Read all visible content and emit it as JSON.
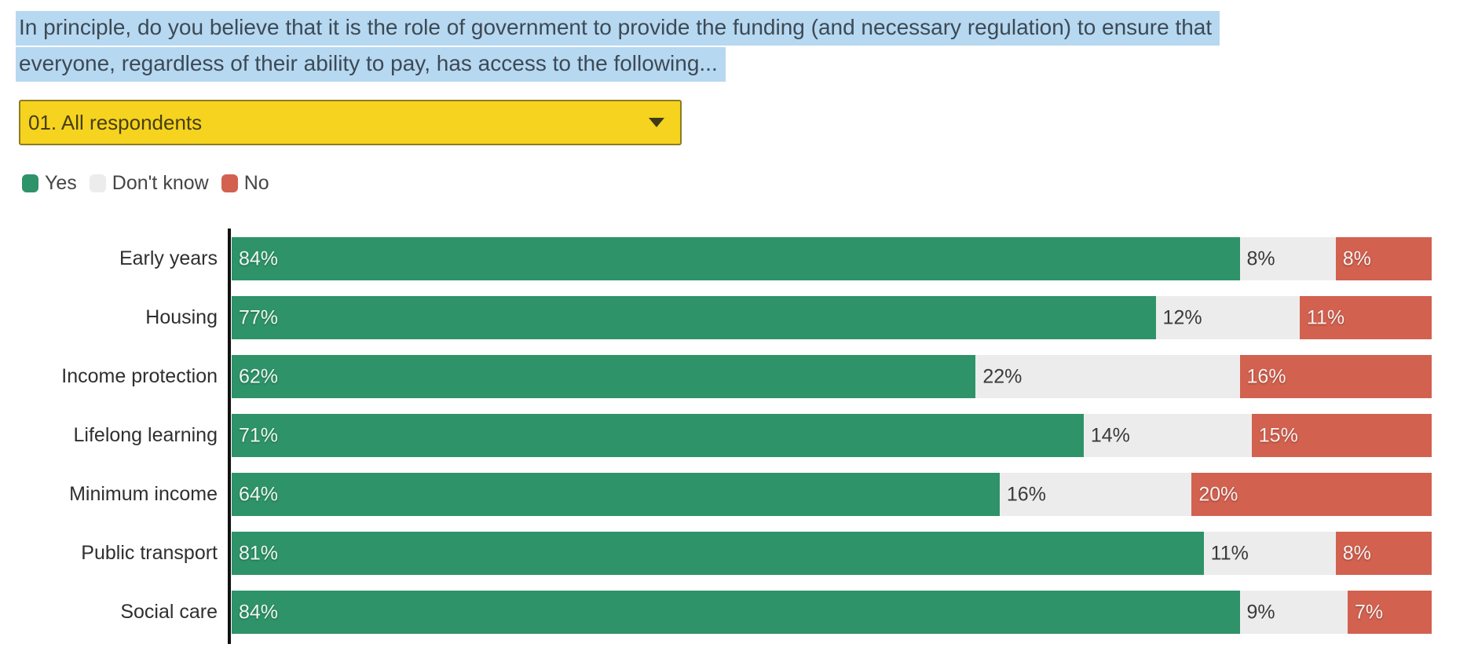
{
  "header": {
    "title_lines": [
      "In principle, do you believe that it is the role of government to provide the funding (and necessary regulation) to ensure that",
      "everyone, regardless of their ability to pay, has access to the following..."
    ]
  },
  "controls": {
    "dropdown": {
      "selected": "01. All respondents"
    }
  },
  "legend": {
    "items": [
      {
        "label": "Yes",
        "color": "#2e9368"
      },
      {
        "label": "Don't know",
        "color": "#ececec"
      },
      {
        "label": "No",
        "color": "#d2614f"
      }
    ]
  },
  "chart_data": {
    "type": "bar",
    "orientation": "horizontal",
    "stacked": true,
    "unit": "%",
    "xlim": [
      0,
      100
    ],
    "grid": false,
    "legend_position": "top-left",
    "value_labels": "inside-start",
    "categories": [
      "Early years",
      "Housing",
      "Income protection",
      "Lifelong learning",
      "Minimum income",
      "Public transport",
      "Social care"
    ],
    "series": [
      {
        "name": "Yes",
        "color": "#2e9368",
        "label_color": "#eef8f2",
        "label_shadow": true,
        "values": [
          84,
          77,
          62,
          71,
          64,
          81,
          84
        ]
      },
      {
        "name": "Don't know",
        "color": "#ececec",
        "label_color": "#3a3a3a",
        "label_shadow": false,
        "values": [
          8,
          12,
          22,
          14,
          16,
          11,
          9
        ]
      },
      {
        "name": "No",
        "color": "#d2614f",
        "label_color": "#fcf1ef",
        "label_shadow": true,
        "values": [
          8,
          11,
          16,
          15,
          20,
          8,
          7
        ]
      }
    ]
  },
  "style": {
    "selection_highlight": "#b7d8f1",
    "dropdown_bg": "#f5d31f",
    "dropdown_border": "#8c7c22",
    "axis_color": "#111111"
  }
}
